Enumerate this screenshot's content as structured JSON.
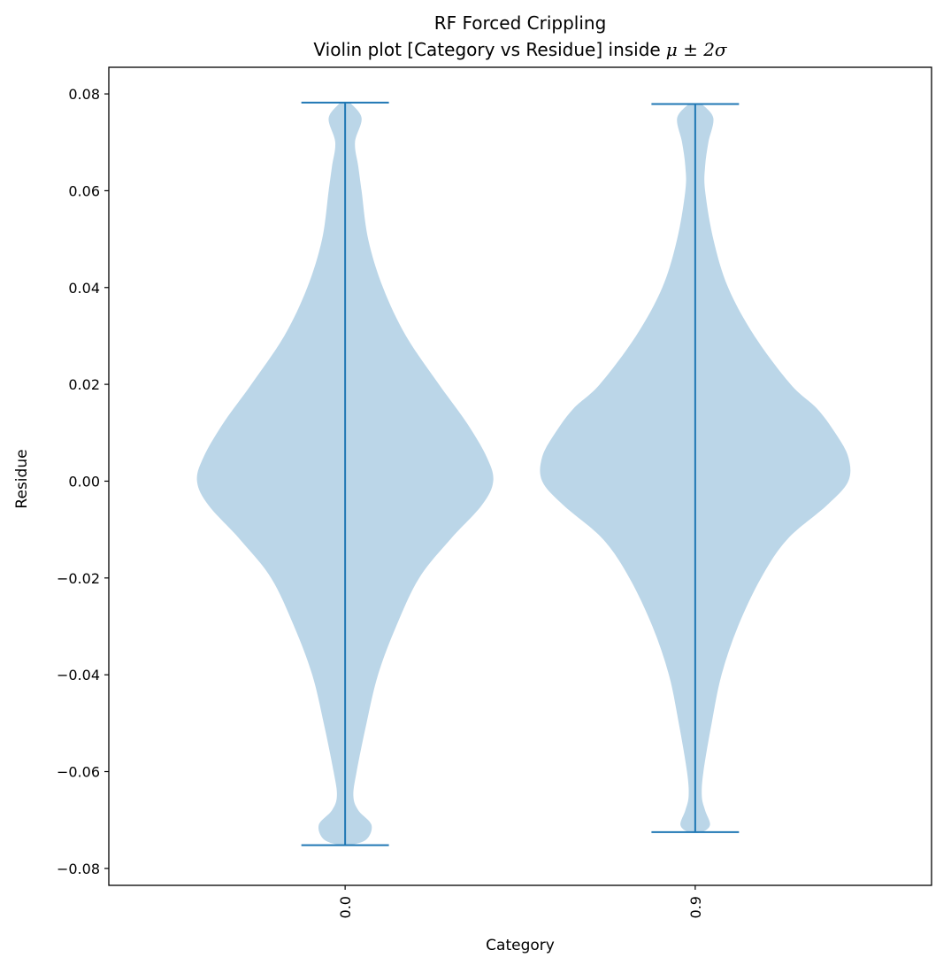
{
  "chart_data": {
    "type": "violin",
    "title": "RF Forced Crippling",
    "subtitle_prefix": "Violin plot [Category vs Residue] inside",
    "subtitle_math": "μ ± 2σ",
    "xlabel": "Category",
    "ylabel": "Residue",
    "ylim": [
      -0.0835,
      0.0855
    ],
    "yticks": [
      0.08,
      0.06,
      0.04,
      0.02,
      0.0,
      -0.02,
      -0.04,
      -0.06,
      -0.08
    ],
    "ytick_labels": [
      "0.08",
      "0.06",
      "0.04",
      "0.02",
      "0.00",
      "−0.02",
      "−0.04",
      "−0.06",
      "−0.08"
    ],
    "categories": [
      "0.0",
      "0.9"
    ],
    "violins": [
      {
        "category": "0.0",
        "min": -0.0752,
        "max": 0.0782,
        "max_width": 0.94,
        "density": [
          [
            0.0782,
            0.03
          ],
          [
            0.075,
            0.1
          ],
          [
            0.07,
            0.06
          ],
          [
            0.065,
            0.08
          ],
          [
            0.06,
            0.1
          ],
          [
            0.05,
            0.14
          ],
          [
            0.04,
            0.23
          ],
          [
            0.03,
            0.37
          ],
          [
            0.02,
            0.57
          ],
          [
            0.012,
            0.74
          ],
          [
            0.005,
            0.86
          ],
          [
            0.0,
            0.9
          ],
          [
            -0.005,
            0.83
          ],
          [
            -0.012,
            0.64
          ],
          [
            -0.02,
            0.45
          ],
          [
            -0.03,
            0.31
          ],
          [
            -0.04,
            0.2
          ],
          [
            -0.05,
            0.13
          ],
          [
            -0.06,
            0.07
          ],
          [
            -0.065,
            0.05
          ],
          [
            -0.068,
            0.08
          ],
          [
            -0.071,
            0.16
          ],
          [
            -0.074,
            0.13
          ],
          [
            -0.0752,
            0.03
          ]
        ]
      },
      {
        "category": "0.9",
        "min": -0.0725,
        "max": 0.0779,
        "max_width": 0.94,
        "density": [
          [
            0.0779,
            0.04
          ],
          [
            0.075,
            0.11
          ],
          [
            0.07,
            0.08
          ],
          [
            0.065,
            0.06
          ],
          [
            0.06,
            0.06
          ],
          [
            0.05,
            0.11
          ],
          [
            0.04,
            0.2
          ],
          [
            0.03,
            0.36
          ],
          [
            0.02,
            0.58
          ],
          [
            0.015,
            0.74
          ],
          [
            0.01,
            0.85
          ],
          [
            0.005,
            0.93
          ],
          [
            0.0,
            0.93
          ],
          [
            -0.005,
            0.8
          ],
          [
            -0.012,
            0.56
          ],
          [
            -0.02,
            0.4
          ],
          [
            -0.03,
            0.26
          ],
          [
            -0.04,
            0.16
          ],
          [
            -0.05,
            0.1
          ],
          [
            -0.06,
            0.05
          ],
          [
            -0.065,
            0.04
          ],
          [
            -0.068,
            0.06
          ],
          [
            -0.071,
            0.09
          ],
          [
            -0.0725,
            0.04
          ]
        ]
      }
    ],
    "colors": {
      "body": "#1f77b4",
      "body_opacity": 0.3,
      "lines": "#1f77b4",
      "axis": "#000000"
    }
  }
}
